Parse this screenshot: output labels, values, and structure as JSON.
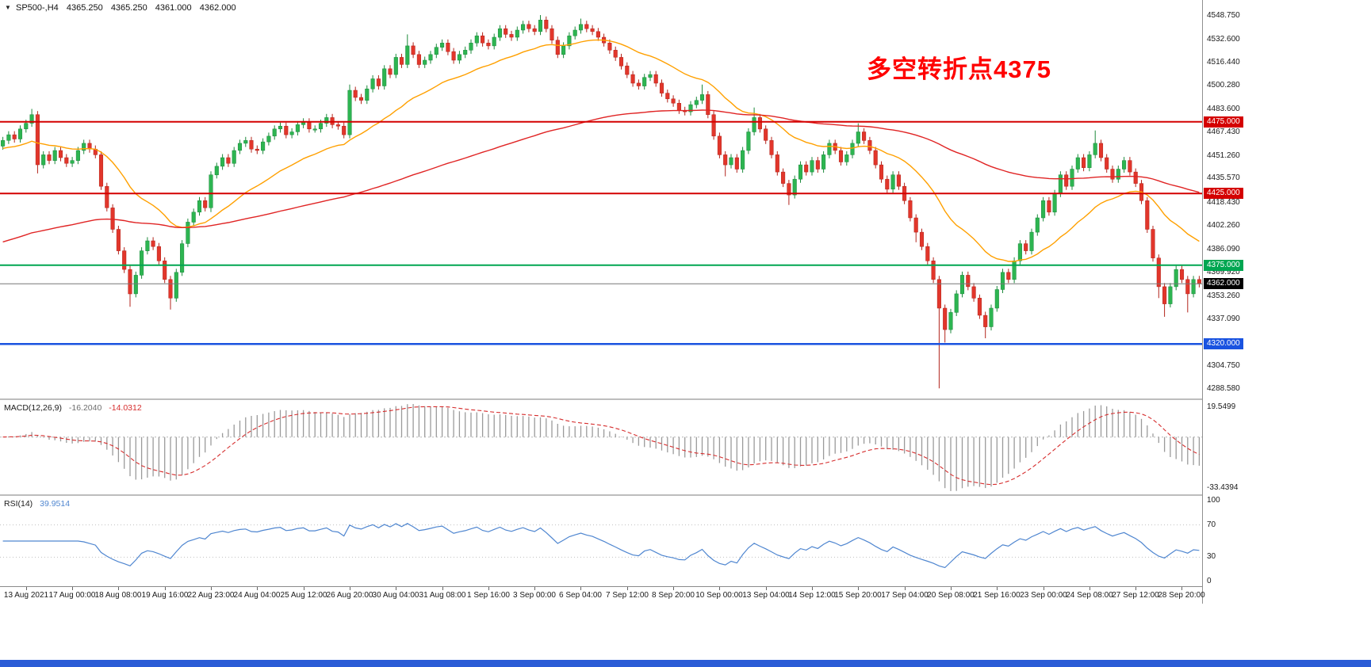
{
  "window": {
    "background": "#ffffff",
    "bottom_bar_color": "#2b5cd6"
  },
  "symbol_bar": {
    "dropdown_icon": "▼",
    "symbol": "SP500-,H4",
    "open": "4365.250",
    "high": "4365.250",
    "low": "4361.000",
    "close": "4362.000"
  },
  "annotation": {
    "text": "多空转折点4375",
    "color": "#ff0000"
  },
  "chart_data": {
    "type": "candlestick",
    "symbol": "SP500-",
    "timeframe": "H4",
    "grid": false,
    "up_color": "#2db551",
    "up_stroke": "#1d8a3c",
    "down_color": "#e2362b",
    "down_stroke": "#b3241c",
    "price_axis": {
      "min": 4282,
      "max": 4560,
      "labels": [
        "4548.750",
        "4532.600",
        "4516.440",
        "4500.280",
        "4483.600",
        "4467.430",
        "4451.260",
        "4435.570",
        "4418.430",
        "4402.260",
        "4386.090",
        "4369.920",
        "4353.260",
        "4337.090",
        "4304.750",
        "4288.580"
      ]
    },
    "time_axis": {
      "first_label_index": 4,
      "step": 8,
      "labels": [
        "13 Aug 2021",
        "17 Aug 00:00",
        "18 Aug 08:00",
        "19 Aug 16:00",
        "22 Aug 23:00",
        "24 Aug 04:00",
        "25 Aug 12:00",
        "26 Aug 20:00",
        "30 Aug 04:00",
        "31 Aug 08:00",
        "1 Sep 16:00",
        "3 Sep 00:00",
        "6 Sep 04:00",
        "7 Sep 12:00",
        "8 Sep 20:00",
        "10 Sep 00:00",
        "13 Sep 04:00",
        "14 Sep 12:00",
        "15 Sep 20:00",
        "17 Sep 04:00",
        "20 Sep 08:00",
        "21 Sep 16:00",
        "23 Sep 00:00",
        "24 Sep 08:00",
        "27 Sep 12:00",
        "28 Sep 20:00"
      ]
    },
    "candles": {
      "first_open": 4458,
      "default_wick": 2.5,
      "closes": [
        4462,
        4466,
        4463,
        4470,
        4474,
        4480,
        4445,
        4452,
        4448,
        4455,
        4450,
        4446,
        4448,
        4455,
        4460,
        4456,
        4452,
        4430,
        4415,
        4400,
        4385,
        4372,
        4355,
        4368,
        4385,
        4392,
        4388,
        4378,
        4365,
        4352,
        4370,
        4390,
        4405,
        4412,
        4420,
        4415,
        4438,
        4444,
        4450,
        4446,
        4455,
        4460,
        4462,
        4456,
        4455,
        4461,
        4465,
        4470,
        4472,
        4466,
        4468,
        4473,
        4475,
        4470,
        4470,
        4474,
        4478,
        4473,
        4472,
        4466,
        4497,
        4492,
        4490,
        4498,
        4505,
        4500,
        4512,
        4508,
        4520,
        4515,
        4528,
        4522,
        4515,
        4518,
        4522,
        4527,
        4530,
        4524,
        4518,
        4522,
        4525,
        4530,
        4535,
        4530,
        4528,
        4534,
        4540,
        4536,
        4534,
        4539,
        4543,
        4540,
        4538,
        4546,
        4540,
        4532,
        4522,
        4528,
        4535,
        4539,
        4543,
        4540,
        4538,
        4534,
        4530,
        4525,
        4520,
        4514,
        4508,
        4502,
        4500,
        4506,
        4508,
        4502,
        4495,
        4491,
        4488,
        4483,
        4482,
        4487,
        4490,
        4494,
        4480,
        4465,
        4452,
        4445,
        4450,
        4442,
        4455,
        4468,
        4478,
        4470,
        4462,
        4452,
        4440,
        4432,
        4424,
        4435,
        4445,
        4440,
        4448,
        4442,
        4452,
        4460,
        4455,
        4447,
        4452,
        4460,
        4468,
        4462,
        4455,
        4445,
        4435,
        4428,
        4438,
        4430,
        4420,
        4408,
        4398,
        4388,
        4378,
        4365,
        4345,
        4330,
        4342,
        4355,
        4368,
        4360,
        4352,
        4340,
        4332,
        4345,
        4358,
        4370,
        4365,
        4378,
        4390,
        4385,
        4398,
        4408,
        4420,
        4412,
        4425,
        4438,
        4430,
        4442,
        4450,
        4443,
        4452,
        4460,
        4450,
        4442,
        4435,
        4442,
        4448,
        4440,
        4432,
        4420,
        4400,
        4380,
        4360,
        4348,
        4360,
        4372,
        4365,
        4355,
        4365,
        4362
      ],
      "overrides": {
        "5": {
          "high": 4484
        },
        "6": {
          "low": 4439
        },
        "22": {
          "low": 4346
        },
        "29": {
          "low": 4344
        },
        "36": {
          "low": 4412
        },
        "60": {
          "high": 4501
        },
        "70": {
          "high": 4536
        },
        "93": {
          "high": 4549.5
        },
        "100": {
          "high": 4547
        },
        "121": {
          "high": 4501
        },
        "125": {
          "low": 4437
        },
        "130": {
          "high": 4485
        },
        "136": {
          "low": 4417
        },
        "148": {
          "high": 4474
        },
        "158": {
          "low": 4391
        },
        "162": {
          "low": 4289
        },
        "163": {
          "low": 4321
        },
        "170": {
          "low": 4324
        },
        "189": {
          "high": 4469
        },
        "200": {
          "low": 4352
        },
        "201": {
          "low": 4339
        },
        "205": {
          "low": 4342
        }
      }
    },
    "moving_averages": [
      {
        "name": "ma-fast",
        "period": 24,
        "seed": 4456,
        "color": "#ffa000"
      },
      {
        "name": "ma-slow",
        "period": 120,
        "seed": 4390,
        "color": "#e02424"
      }
    ],
    "hlines": [
      {
        "value": 4475.0,
        "label": "4475.000",
        "color": "#d40000",
        "width": 2
      },
      {
        "value": 4425.0,
        "label": "4425.000",
        "color": "#d40000",
        "width": 2
      },
      {
        "value": 4375.0,
        "label": "4375.000",
        "color": "#00a651",
        "width": 2
      },
      {
        "value": 4320.0,
        "label": "4320.000",
        "color": "#1a53e0",
        "width": 2.5
      }
    ],
    "current_price": {
      "value": 4362.0,
      "label": "4362.000",
      "line_color": "#777777",
      "tag_bg": "#000000"
    }
  },
  "macd_panel": {
    "label": "MACD(12,26,9)",
    "fast": 12,
    "slow": 26,
    "signal_period": 9,
    "value": "-16.2040",
    "signal_value": "-14.0312",
    "max_label": "19.5499",
    "min_label": "-33.4394",
    "histogram_color": "#9a9a9a",
    "signal_color": "#d62d2d"
  },
  "rsi_panel": {
    "label": "RSI(14)",
    "period": 14,
    "value": "39.9514",
    "line_color": "#4f86d0",
    "levels": [
      70,
      30
    ],
    "axis_labels": [
      "100",
      "70",
      "30",
      "0"
    ]
  }
}
